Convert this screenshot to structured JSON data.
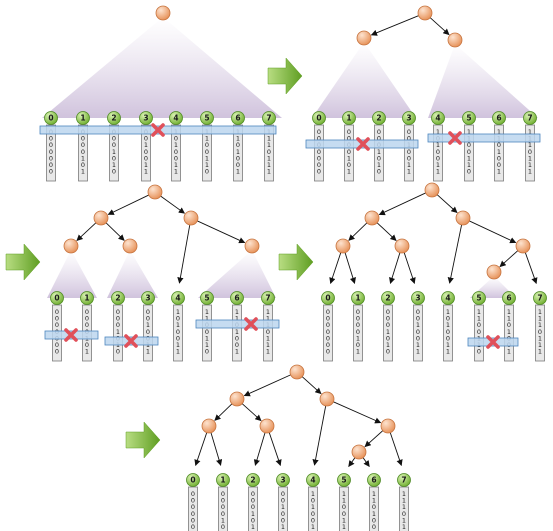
{
  "figure": {
    "panel_count": 5,
    "arrow_count": 4,
    "node_colors": {
      "internal_fill": "#f2a777",
      "internal_stroke": "#c7743f",
      "leaf_fill": "#8cc63e",
      "leaf_stroke": "#4e8a24",
      "tape_fill": "#e8e8e8",
      "tape_stroke": "#7a7a7a",
      "split_bar_fill": "#bcd6ee",
      "split_bar_stroke": "#4d86bf",
      "cone_fill": "#d8cde2",
      "cross_color": "#e0505a",
      "arrow_color": "#74ad2c"
    }
  },
  "leaves": [
    {
      "label": "0",
      "bits": "0000000"
    },
    {
      "label": "1",
      "bits": "0000101"
    },
    {
      "label": "2",
      "bits": "0001010"
    },
    {
      "label": "3",
      "bits": "0010011"
    },
    {
      "label": "4",
      "bits": "1010011"
    },
    {
      "label": "5",
      "bits": "1100110"
    },
    {
      "label": "6",
      "bits": "1101001"
    },
    {
      "label": "7",
      "bits": "1110111"
    }
  ]
}
